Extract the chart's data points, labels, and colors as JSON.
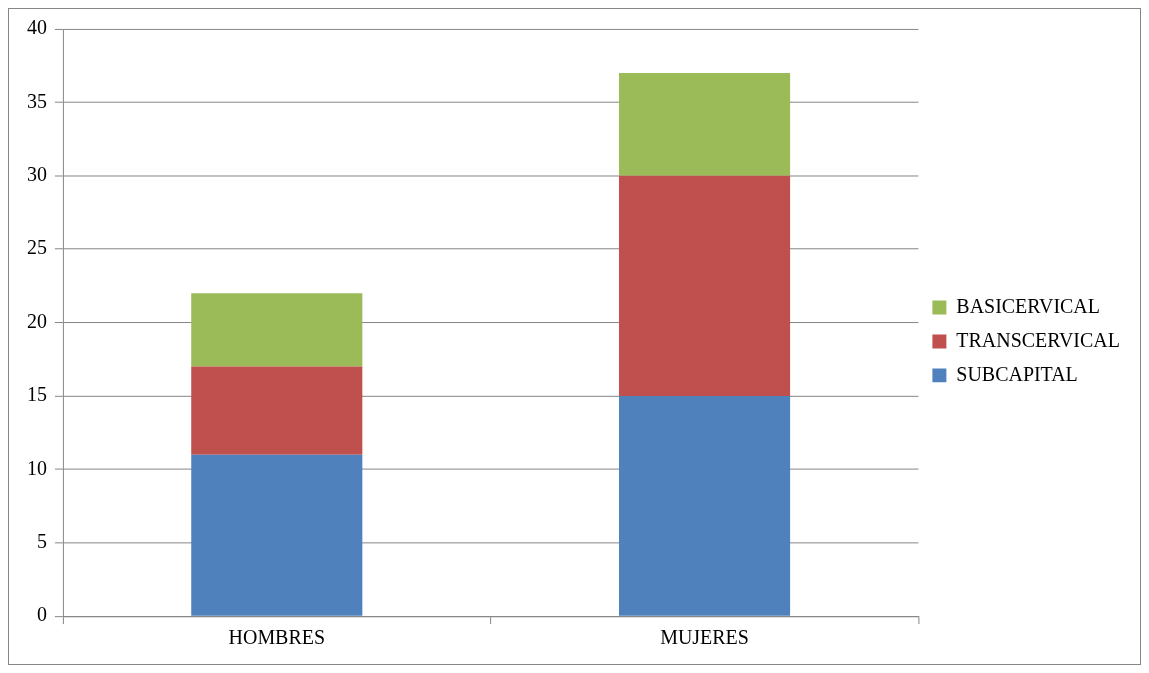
{
  "chart_data": {
    "type": "bar",
    "categories": [
      "HOMBRES",
      "MUJERES"
    ],
    "stacked": true,
    "series": [
      {
        "name": "SUBCAPITAL",
        "color": "#4f81bd",
        "values": [
          11,
          15
        ]
      },
      {
        "name": "TRANSCERVICAL",
        "color": "#c0504d",
        "values": [
          6,
          15
        ]
      },
      {
        "name": "BASICERVICAL",
        "color": "#9bbb59",
        "values": [
          5,
          7
        ]
      }
    ],
    "ylim": [
      0,
      40
    ],
    "yticks": [
      0,
      5,
      10,
      15,
      20,
      25,
      30,
      35,
      40
    ],
    "grid": "y",
    "legend": "right"
  }
}
